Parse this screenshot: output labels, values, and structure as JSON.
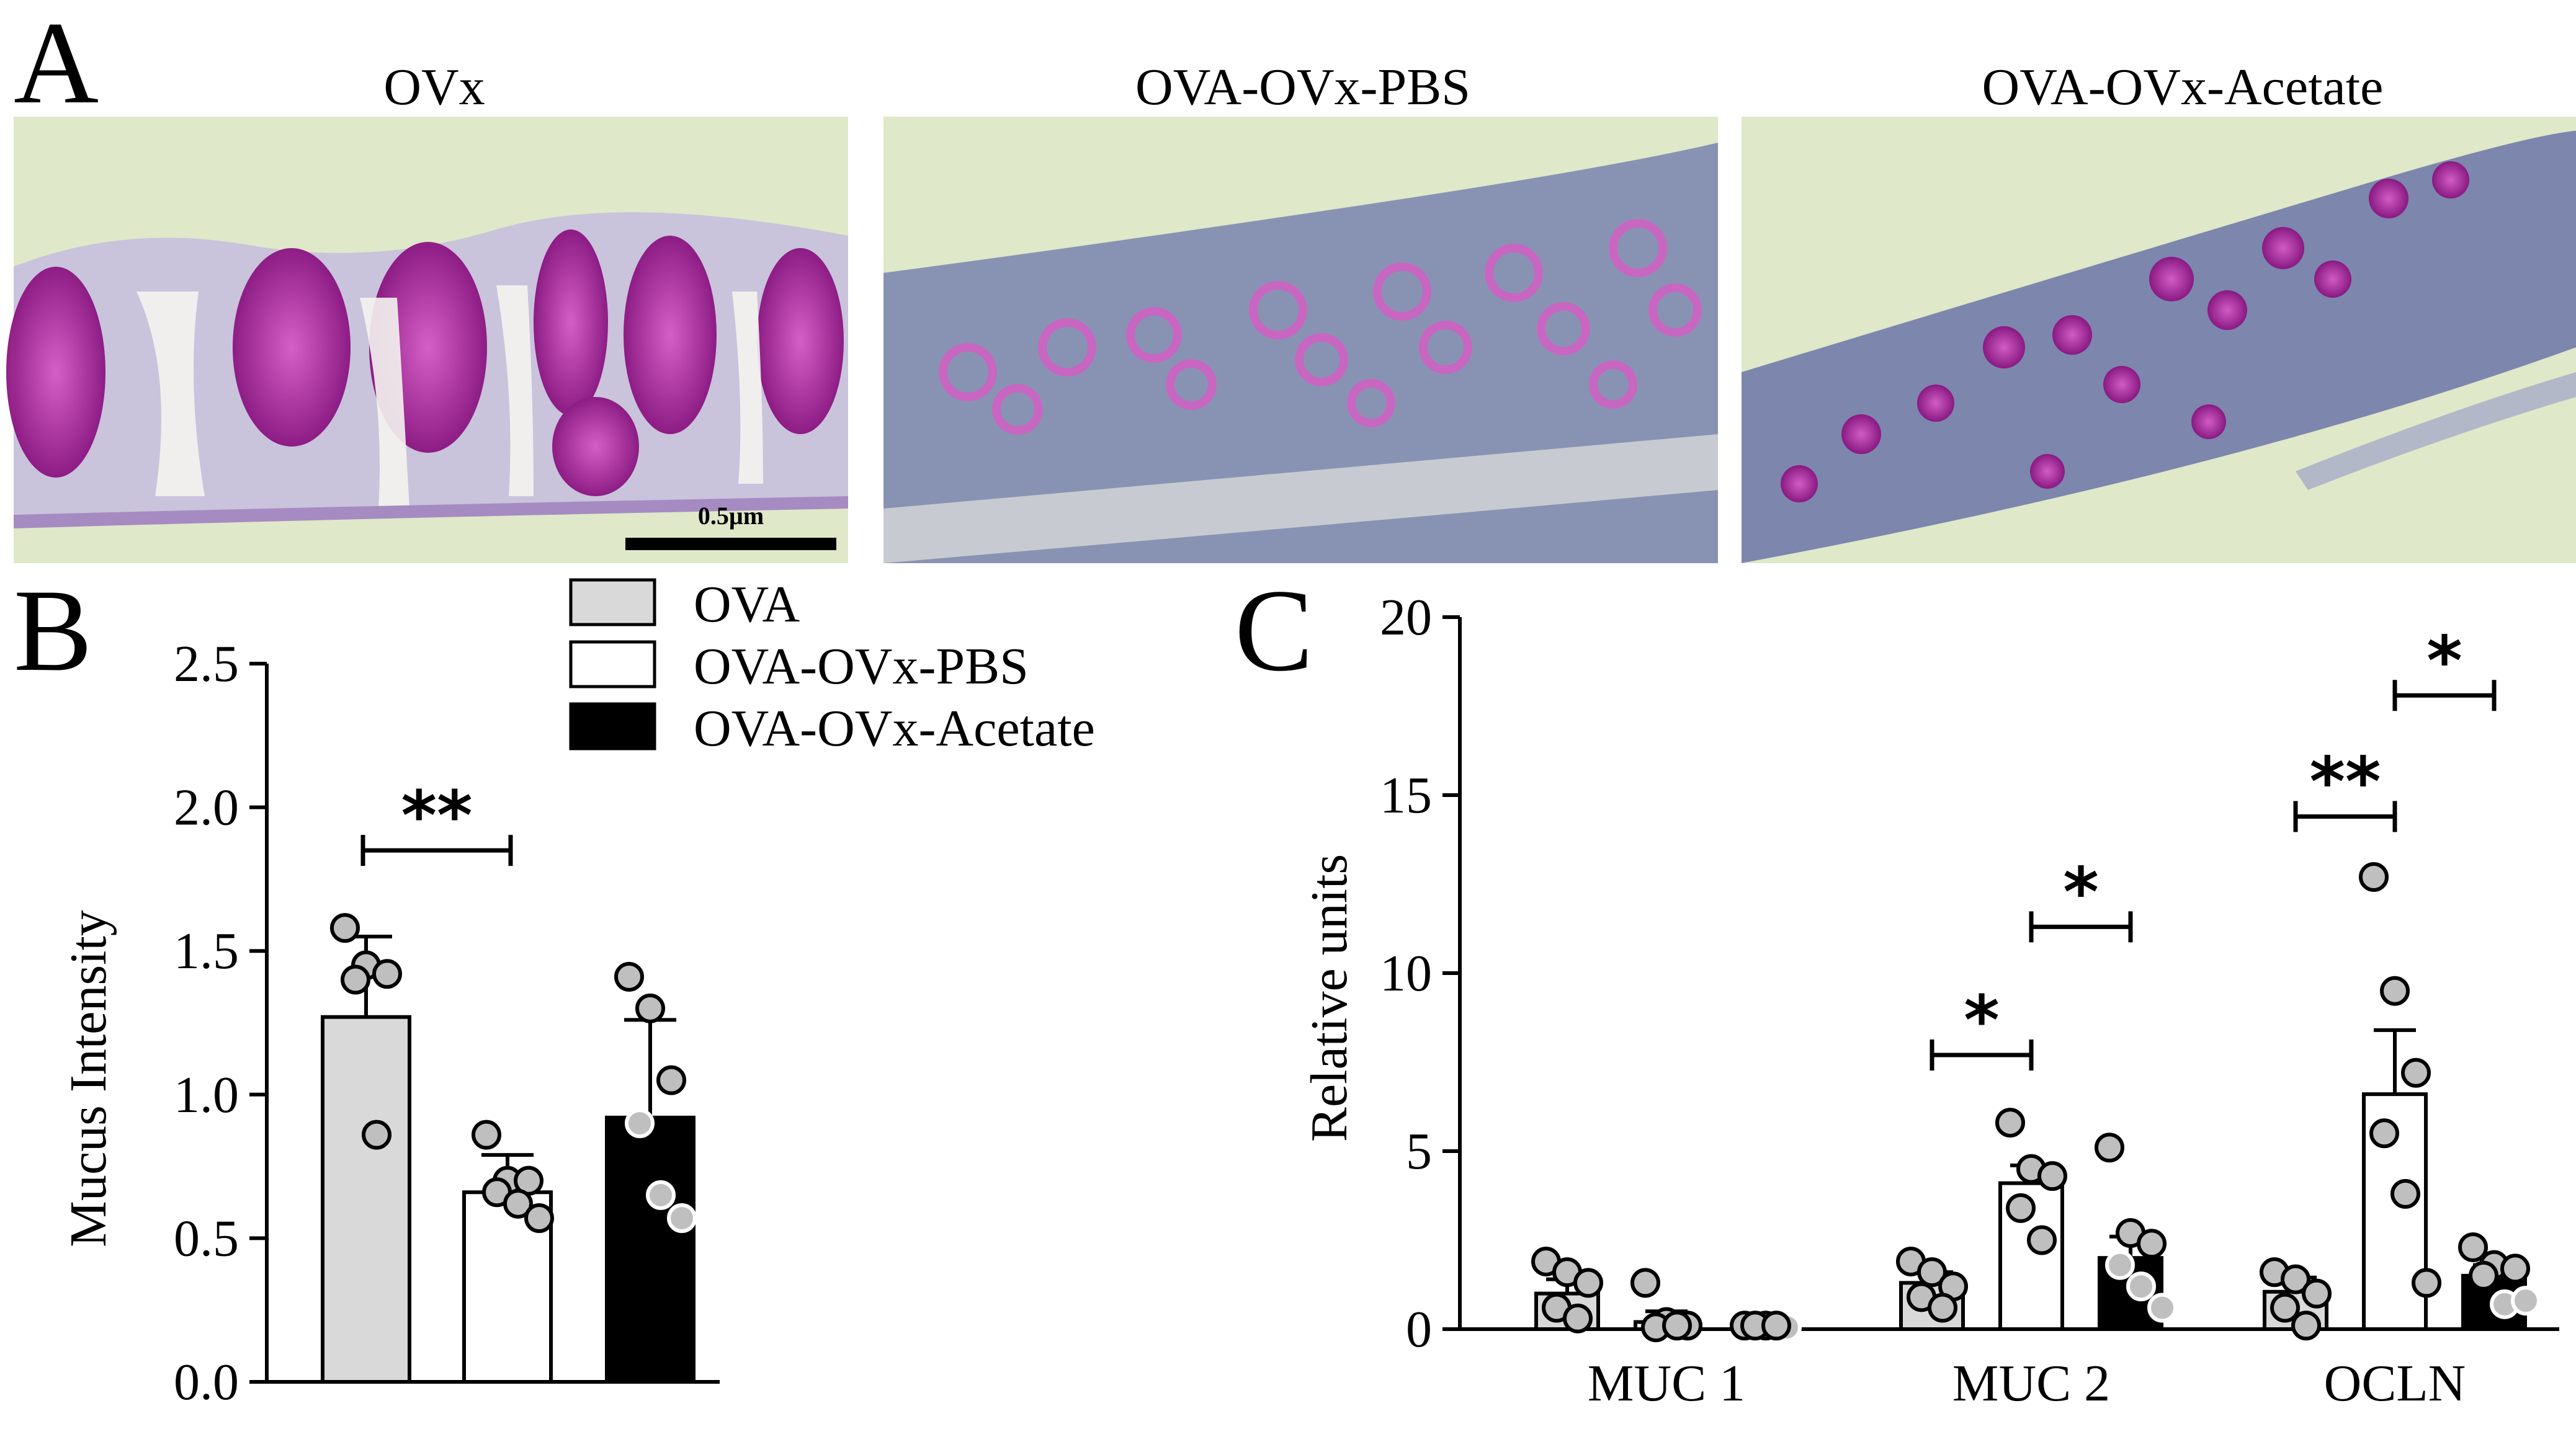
{
  "panels": {
    "A": {
      "letter": "A",
      "images": [
        {
          "title": "OVx",
          "scale_bar_label": "0.5µm"
        },
        {
          "title": "OVA-OVx-PBS"
        },
        {
          "title": "OVA-OVx-Acetate"
        }
      ]
    },
    "B": {
      "letter": "B"
    },
    "C": {
      "letter": "C"
    }
  },
  "legend": [
    {
      "label": "OVA",
      "fill": "#d9d9d9"
    },
    {
      "label": "OVA-OVx-PBS",
      "fill": "#ffffff"
    },
    {
      "label": "OVA-OVx-Acetate",
      "fill": "#000000"
    }
  ],
  "colors": {
    "tissue_background": "#dfe8c8",
    "mucus_magenta": "#b5249f",
    "tissue_blue": "#6f7ea6"
  },
  "chart_data": [
    {
      "type": "bar",
      "panel": "B",
      "ylabel": "Mucus Intensity",
      "ylim": [
        0,
        2.5
      ],
      "yticks": [
        "0.0",
        "0.5",
        "1.0",
        "1.5",
        "2.0",
        "2.5"
      ],
      "series": [
        {
          "name": "OVA",
          "value": 1.27,
          "error": 0.28,
          "points": [
            1.58,
            1.45,
            1.42,
            1.4,
            0.86
          ]
        },
        {
          "name": "OVA-OVx-PBS",
          "value": 0.66,
          "error": 0.13,
          "points": [
            0.86,
            0.7,
            0.7,
            0.66,
            0.62,
            0.57
          ]
        },
        {
          "name": "OVA-OVx-Acetate",
          "value": 0.92,
          "error": 0.34,
          "points": [
            1.41,
            1.3,
            1.05,
            0.9,
            0.65,
            0.57
          ]
        }
      ],
      "significance": [
        {
          "from": 0,
          "to": 1,
          "label": "**",
          "y": 1.85
        }
      ]
    },
    {
      "type": "bar",
      "panel": "C",
      "ylabel": "Relative units",
      "ylim": [
        0,
        20
      ],
      "yticks": [
        "0",
        "5",
        "10",
        "15",
        "20"
      ],
      "categories": [
        "MUC 1",
        "MUC 2",
        "OCLN"
      ],
      "series": [
        {
          "name": "OVA",
          "values": [
            1.0,
            1.3,
            1.05
          ],
          "errors": [
            0.4,
            0.3,
            0.4
          ],
          "points": [
            [
              1.9,
              1.6,
              1.3,
              0.6,
              0.3
            ],
            [
              1.9,
              1.6,
              1.2,
              0.9,
              0.6
            ],
            [
              1.6,
              1.4,
              1.0,
              0.6,
              0.1
            ]
          ]
        },
        {
          "name": "OVA-OVx-PBS",
          "values": [
            0.2,
            4.1,
            6.6
          ],
          "errors": [
            0.3,
            0.5,
            1.8
          ],
          "points": [
            [
              1.3,
              0.2,
              0.1,
              0.05,
              0.1
            ],
            [
              5.8,
              4.5,
              4.3,
              3.4,
              2.5
            ],
            [
              12.7,
              9.5,
              7.2,
              5.5,
              3.8,
              1.3
            ]
          ]
        },
        {
          "name": "OVA-OVx-Acetate",
          "values": [
            0.1,
            2.0,
            1.5
          ],
          "errors": [
            0.1,
            0.6,
            0.3
          ],
          "points": [
            [
              0.1,
              0.1,
              0.05,
              0.1,
              0.1
            ],
            [
              5.1,
              2.7,
              2.4,
              1.8,
              1.2,
              0.6
            ],
            [
              2.3,
              1.8,
              1.7,
              1.5,
              0.7,
              0.8
            ]
          ]
        }
      ],
      "significance": [
        {
          "category": 1,
          "from": 0,
          "to": 1,
          "label": "*",
          "y": 7.7
        },
        {
          "category": 1,
          "from": 1,
          "to": 2,
          "label": "*",
          "y": 11.3
        },
        {
          "category": 2,
          "from": 0,
          "to": 1,
          "label": "**",
          "y": 14.4
        },
        {
          "category": 2,
          "from": 1,
          "to": 2,
          "label": "*",
          "y": 17.8
        }
      ]
    }
  ]
}
